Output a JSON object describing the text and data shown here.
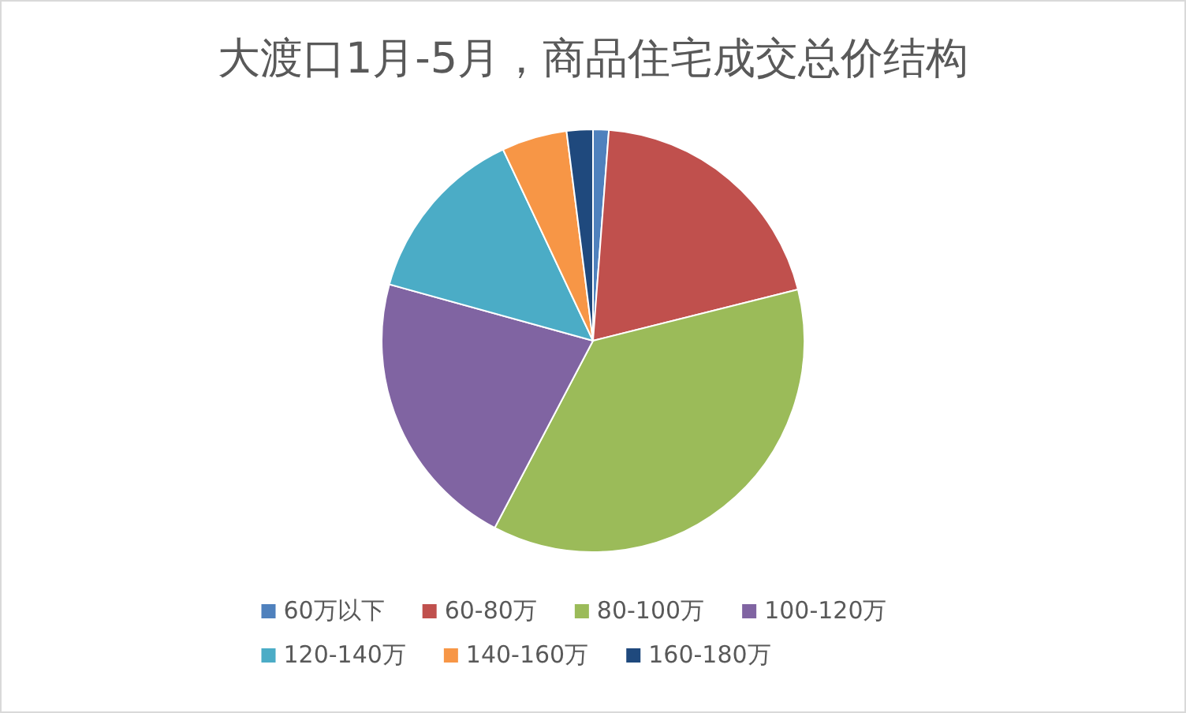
{
  "chart_data": {
    "type": "pie",
    "title": "大渡口1月-5月，商品住宅成交总价结构",
    "categories": [
      "60万以下",
      "60-80万",
      "80-100万",
      "100-120万",
      "120-140万",
      "140-160万",
      "160-180万"
    ],
    "values": [
      1.2,
      19.9,
      36.6,
      21.6,
      13.7,
      5.0,
      2.0
    ],
    "colors": [
      "#4f81bd",
      "#c0504d",
      "#9bbb59",
      "#8064a2",
      "#4bacc6",
      "#f79646",
      "#1f497d"
    ],
    "legend": "bottom"
  }
}
